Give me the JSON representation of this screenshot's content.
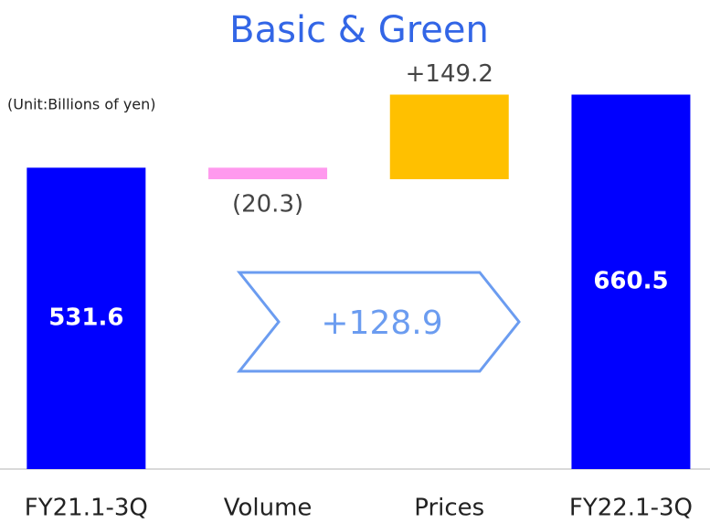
{
  "chart_data": {
    "type": "waterfall",
    "title": "Basic & Green",
    "subtitle": "(Unit:Billions of yen)",
    "categories": [
      "FY21.1-3Q",
      "Volume",
      "Prices",
      "FY22.1-3Q"
    ],
    "values": [
      531.6,
      -20.3,
      149.2,
      660.5
    ],
    "value_labels": [
      "531.6",
      "(20.3)",
      "+149.2",
      "660.5"
    ],
    "totals": [
      true,
      false,
      false,
      true
    ],
    "colors": [
      "#0000ff",
      "#ff99ee",
      "#ffc000",
      "#0000ff"
    ],
    "annotation": "+128.9",
    "ylim": [
      0,
      700
    ]
  }
}
